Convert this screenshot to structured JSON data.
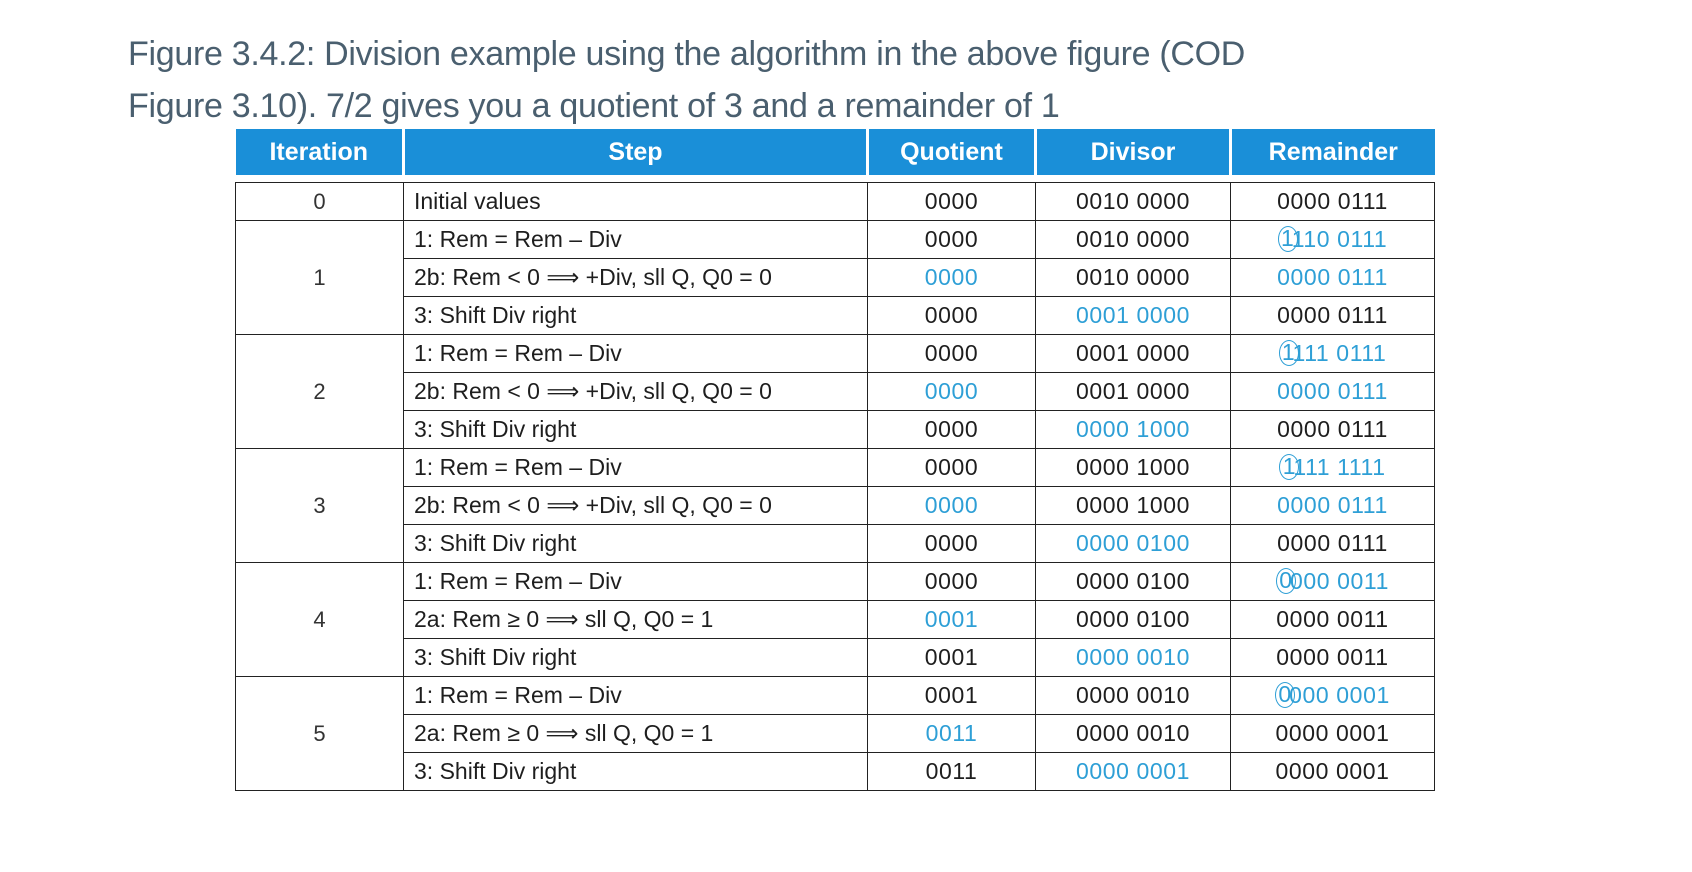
{
  "caption": {
    "line1": "Figure 3.4.2: Division example using the algorithm in the above figure (COD",
    "line2": "Figure 3.10).   7/2 gives you a quotient of 3 and a remainder of 1"
  },
  "table": {
    "headers": {
      "iteration": "Iteration",
      "step": "Step",
      "quotient": "Quotient",
      "divisor": "Divisor",
      "remainder": "Remainder"
    },
    "highlight_color": "#2e9fd6",
    "header_color": "#1a8fd8",
    "iterations": [
      {
        "iteration": "0",
        "rows": [
          {
            "step": "Initial values",
            "quotient": "0000",
            "divisor": "0010 0000",
            "remainder_first": "",
            "remainder_rest": "0000 0111",
            "quotient_highlight": false,
            "divisor_highlight": false,
            "remainder_highlight": false
          }
        ]
      },
      {
        "iteration": "1",
        "rows": [
          {
            "step": "1:  Rem = Rem – Div",
            "quotient": "0000",
            "divisor": "0010 0000",
            "remainder_first": "1",
            "remainder_rest": "110 0111",
            "quotient_highlight": false,
            "divisor_highlight": false,
            "remainder_highlight": true
          },
          {
            "step": "2b:  Rem < 0 ⟹ +Div, sll Q, Q0 = 0",
            "quotient": "0000",
            "divisor": "0010 0000",
            "remainder_first": "",
            "remainder_rest": "0000 0111",
            "quotient_highlight": true,
            "divisor_highlight": false,
            "remainder_highlight": true
          },
          {
            "step": "3:  Shift Div right",
            "quotient": "0000",
            "divisor": "0001 0000",
            "remainder_first": "",
            "remainder_rest": "0000 0111",
            "quotient_highlight": false,
            "divisor_highlight": true,
            "remainder_highlight": false
          }
        ]
      },
      {
        "iteration": "2",
        "rows": [
          {
            "step": "1:  Rem = Rem – Div",
            "quotient": "0000",
            "divisor": "0001 0000",
            "remainder_first": "1",
            "remainder_rest": "111 0111",
            "quotient_highlight": false,
            "divisor_highlight": false,
            "remainder_highlight": true
          },
          {
            "step": "2b:  Rem < 0 ⟹ +Div, sll Q, Q0 = 0",
            "quotient": "0000",
            "divisor": "0001 0000",
            "remainder_first": "",
            "remainder_rest": "0000 0111",
            "quotient_highlight": true,
            "divisor_highlight": false,
            "remainder_highlight": true
          },
          {
            "step": "3:  Shift Div right",
            "quotient": "0000",
            "divisor": "0000 1000",
            "remainder_first": "",
            "remainder_rest": "0000 0111",
            "quotient_highlight": false,
            "divisor_highlight": true,
            "remainder_highlight": false
          }
        ]
      },
      {
        "iteration": "3",
        "rows": [
          {
            "step": "1:  Rem = Rem – Div",
            "quotient": "0000",
            "divisor": "0000 1000",
            "remainder_first": "1",
            "remainder_rest": "111 1111",
            "quotient_highlight": false,
            "divisor_highlight": false,
            "remainder_highlight": true
          },
          {
            "step": "2b:  Rem < 0 ⟹ +Div, sll Q, Q0 = 0",
            "quotient": "0000",
            "divisor": "0000 1000",
            "remainder_first": "",
            "remainder_rest": "0000 0111",
            "quotient_highlight": true,
            "divisor_highlight": false,
            "remainder_highlight": true
          },
          {
            "step": "3:  Shift Div right",
            "quotient": "0000",
            "divisor": "0000 0100",
            "remainder_first": "",
            "remainder_rest": "0000 0111",
            "quotient_highlight": false,
            "divisor_highlight": true,
            "remainder_highlight": false
          }
        ]
      },
      {
        "iteration": "4",
        "rows": [
          {
            "step": "1:  Rem = Rem – Div",
            "quotient": "0000",
            "divisor": "0000 0100",
            "remainder_first": "0",
            "remainder_rest": "000 0011",
            "quotient_highlight": false,
            "divisor_highlight": false,
            "remainder_highlight": true
          },
          {
            "step": "2a:  Rem ≥ 0 ⟹ sll Q, Q0 = 1",
            "quotient": "0001",
            "divisor": "0000 0100",
            "remainder_first": "",
            "remainder_rest": "0000 0011",
            "quotient_highlight": true,
            "divisor_highlight": false,
            "remainder_highlight": false
          },
          {
            "step": "3:  Shift Div right",
            "quotient": "0001",
            "divisor": "0000 0010",
            "remainder_first": "",
            "remainder_rest": "0000 0011",
            "quotient_highlight": false,
            "divisor_highlight": true,
            "remainder_highlight": false
          }
        ]
      },
      {
        "iteration": "5",
        "rows": [
          {
            "step": "1:  Rem = Rem – Div",
            "quotient": "0001",
            "divisor": "0000 0010",
            "remainder_first": "0",
            "remainder_rest": "000 0001",
            "quotient_highlight": false,
            "divisor_highlight": false,
            "remainder_highlight": true
          },
          {
            "step": "2a:  Rem ≥ 0 ⟹ sll Q, Q0 = 1",
            "quotient": "0011",
            "divisor": "0000 0010",
            "remainder_first": "",
            "remainder_rest": "0000 0001",
            "quotient_highlight": true,
            "divisor_highlight": false,
            "remainder_highlight": false
          },
          {
            "step": "3:  Shift Div right",
            "quotient": "0011",
            "divisor": "0000 0001",
            "remainder_first": "",
            "remainder_rest": "0000 0001",
            "quotient_highlight": false,
            "divisor_highlight": true,
            "remainder_highlight": false
          }
        ]
      }
    ]
  }
}
